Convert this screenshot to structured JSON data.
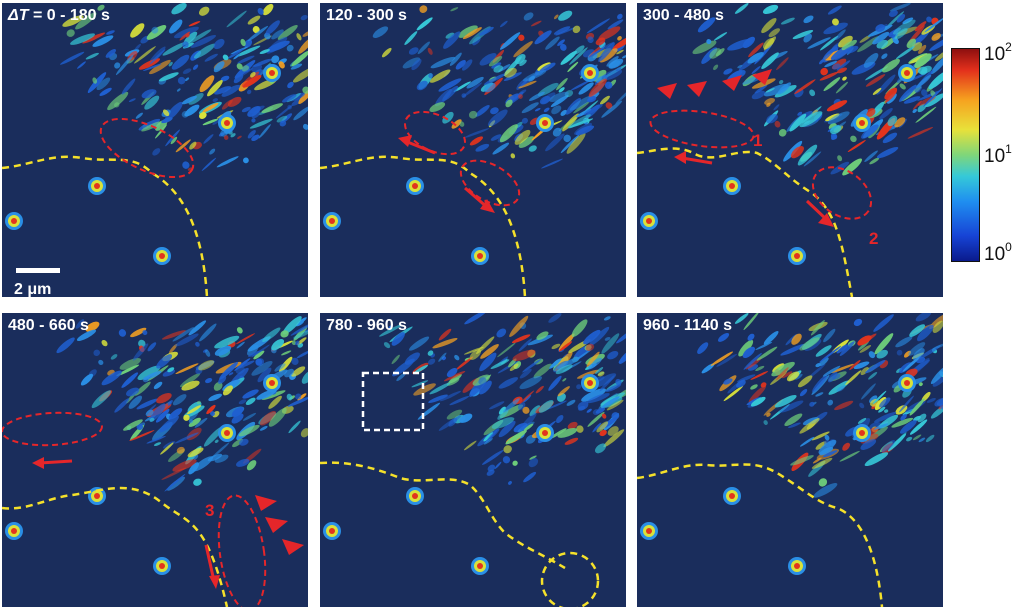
{
  "panels": [
    {
      "time_prefix": "ΔT",
      "time_label": " = 0 - 180 s"
    },
    {
      "time_label": "120 - 300 s"
    },
    {
      "time_label": "300 - 480 s"
    },
    {
      "time_label": "480 - 660 s"
    },
    {
      "time_label": "780 - 960 s"
    },
    {
      "time_label": "960 - 1140 s"
    }
  ],
  "scalebar_label": "2 μm",
  "markers": {
    "m1": "1",
    "m2": "2",
    "m3": "3"
  },
  "colorbar": {
    "ticks": [
      {
        "base": "10",
        "exp": "2"
      },
      {
        "base": "10",
        "exp": "1"
      },
      {
        "base": "10",
        "exp": "0"
      }
    ],
    "scale": "log"
  },
  "colors": {
    "background": "#1a2d5c",
    "annotation_red": "#e5262a",
    "boundary_yellow": "#f5e12a",
    "box_white": "#ffffff"
  }
}
